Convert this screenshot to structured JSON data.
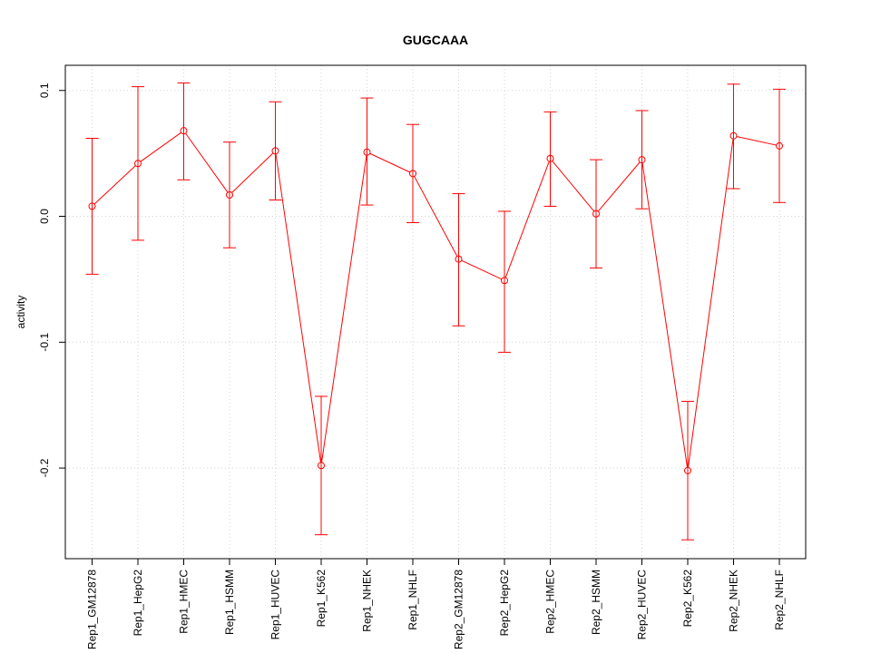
{
  "chart_data": {
    "type": "line",
    "title": "GUGCAAA",
    "xlabel": "",
    "ylabel": "activity",
    "categories": [
      "Rep1_GM12878",
      "Rep1_HepG2",
      "Rep1_HMEC",
      "Rep1_HSMM",
      "Rep1_HUVEC",
      "Rep1_K562",
      "Rep1_NHEK",
      "Rep1_NHLF",
      "Rep2_GM12878",
      "Rep2_HepG2",
      "Rep2_HMEC",
      "Rep2_HSMM",
      "Rep2_HUVEC",
      "Rep2_K562",
      "Rep2_NHEK",
      "Rep2_NHLF"
    ],
    "series": [
      {
        "values": [
          0.008,
          0.042,
          0.068,
          0.017,
          0.052,
          -0.198,
          0.051,
          0.034,
          -0.034,
          -0.051,
          0.046,
          0.002,
          0.045,
          -0.202,
          0.064,
          0.056
        ],
        "upper": [
          0.062,
          0.103,
          0.106,
          0.059,
          0.091,
          -0.143,
          0.094,
          0.073,
          0.018,
          0.004,
          0.083,
          0.045,
          0.084,
          -0.147,
          0.105,
          0.101
        ],
        "lower": [
          -0.046,
          -0.019,
          0.029,
          -0.025,
          0.013,
          -0.253,
          0.009,
          -0.005,
          -0.087,
          -0.108,
          0.008,
          -0.041,
          0.006,
          -0.257,
          0.022,
          0.011
        ]
      }
    ],
    "yticks": [
      0.1,
      0.0,
      -0.1,
      -0.2
    ],
    "ytick_labels": [
      "0.1",
      "0.0",
      "-0.1",
      "-0.2"
    ],
    "ylim": [
      -0.272,
      0.12
    ],
    "grid": true,
    "colors": {
      "series": "#ff0000",
      "grid": "#d3d3d3",
      "axis": "#000000"
    }
  }
}
